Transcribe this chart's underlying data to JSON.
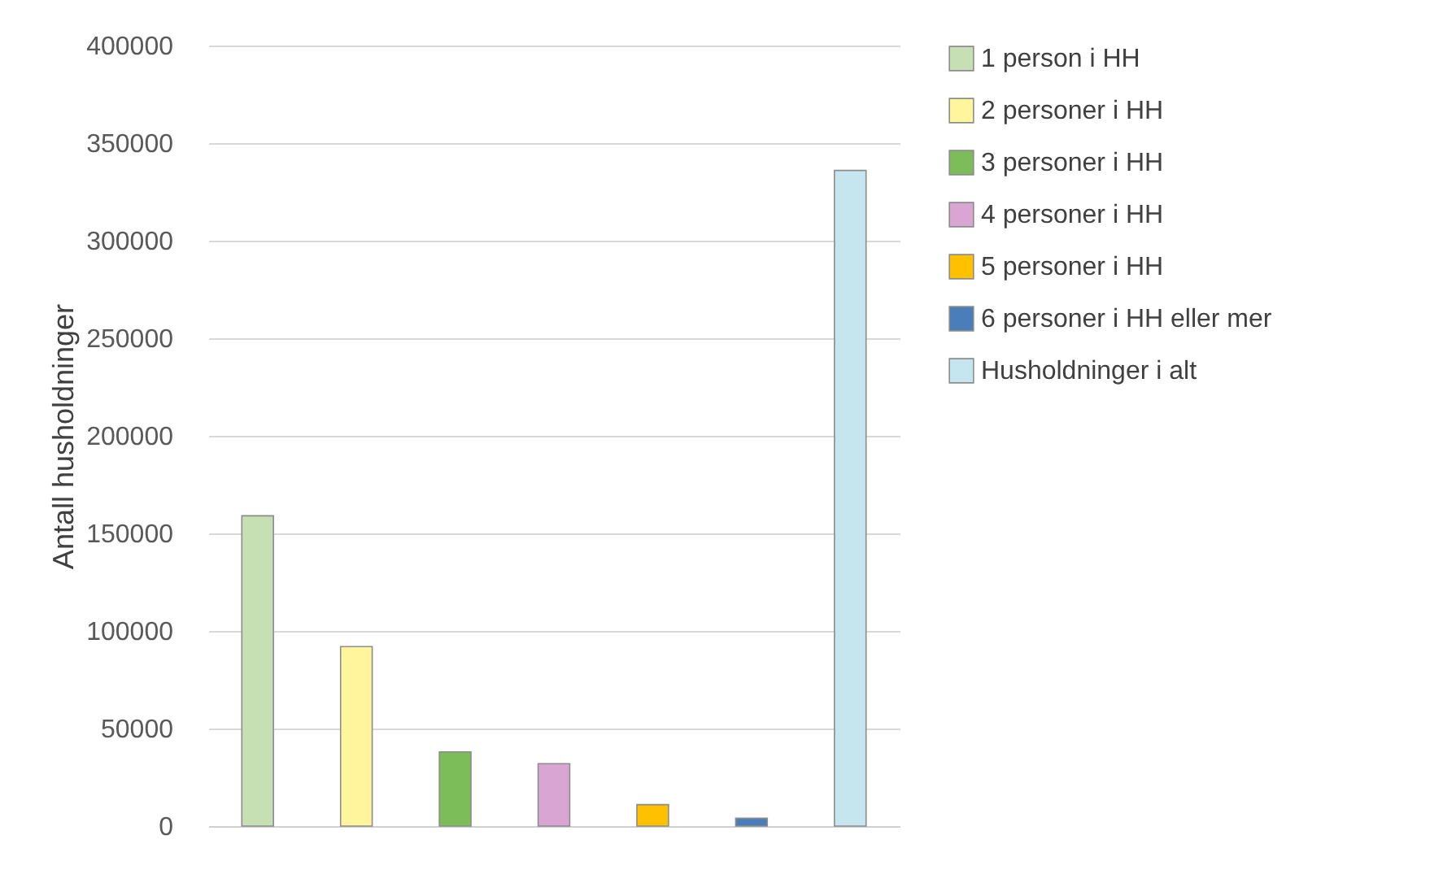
{
  "chart_data": {
    "type": "bar",
    "ylabel": "Antall husholdninger",
    "categories": [
      null,
      null,
      null,
      null,
      null,
      null,
      null
    ],
    "series": [
      {
        "name": "1 person i HH",
        "color": "#c6e0b4",
        "values": [
          159000,
          null,
          null,
          null,
          null,
          null,
          null
        ]
      },
      {
        "name": "2 personer i HH",
        "color": "#fff59d",
        "values": [
          null,
          92000,
          null,
          null,
          null,
          null,
          null
        ]
      },
      {
        "name": "3 personer i HH",
        "color": "#7cbd5a",
        "values": [
          null,
          null,
          38000,
          null,
          null,
          null,
          null
        ]
      },
      {
        "name": "4 personer i HH",
        "color": "#d9a6d4",
        "values": [
          null,
          null,
          null,
          32000,
          null,
          null,
          null
        ]
      },
      {
        "name": "5 personer i HH",
        "color": "#ffc000",
        "values": [
          null,
          null,
          null,
          null,
          11000,
          null,
          null
        ]
      },
      {
        "name": "6 personer i HH eller mer",
        "color": "#4a7ebb",
        "values": [
          null,
          null,
          null,
          null,
          null,
          4000,
          null
        ]
      },
      {
        "name": "Husholdninger i alt",
        "color": "#c5e6ef",
        "values": [
          null,
          null,
          null,
          null,
          null,
          null,
          336000
        ]
      }
    ],
    "ylim": [
      0,
      400000
    ],
    "yticks": [
      0,
      50000,
      100000,
      150000,
      200000,
      250000,
      300000,
      350000,
      400000
    ],
    "grid": "y",
    "legend": "right",
    "tick_labels": "y"
  }
}
